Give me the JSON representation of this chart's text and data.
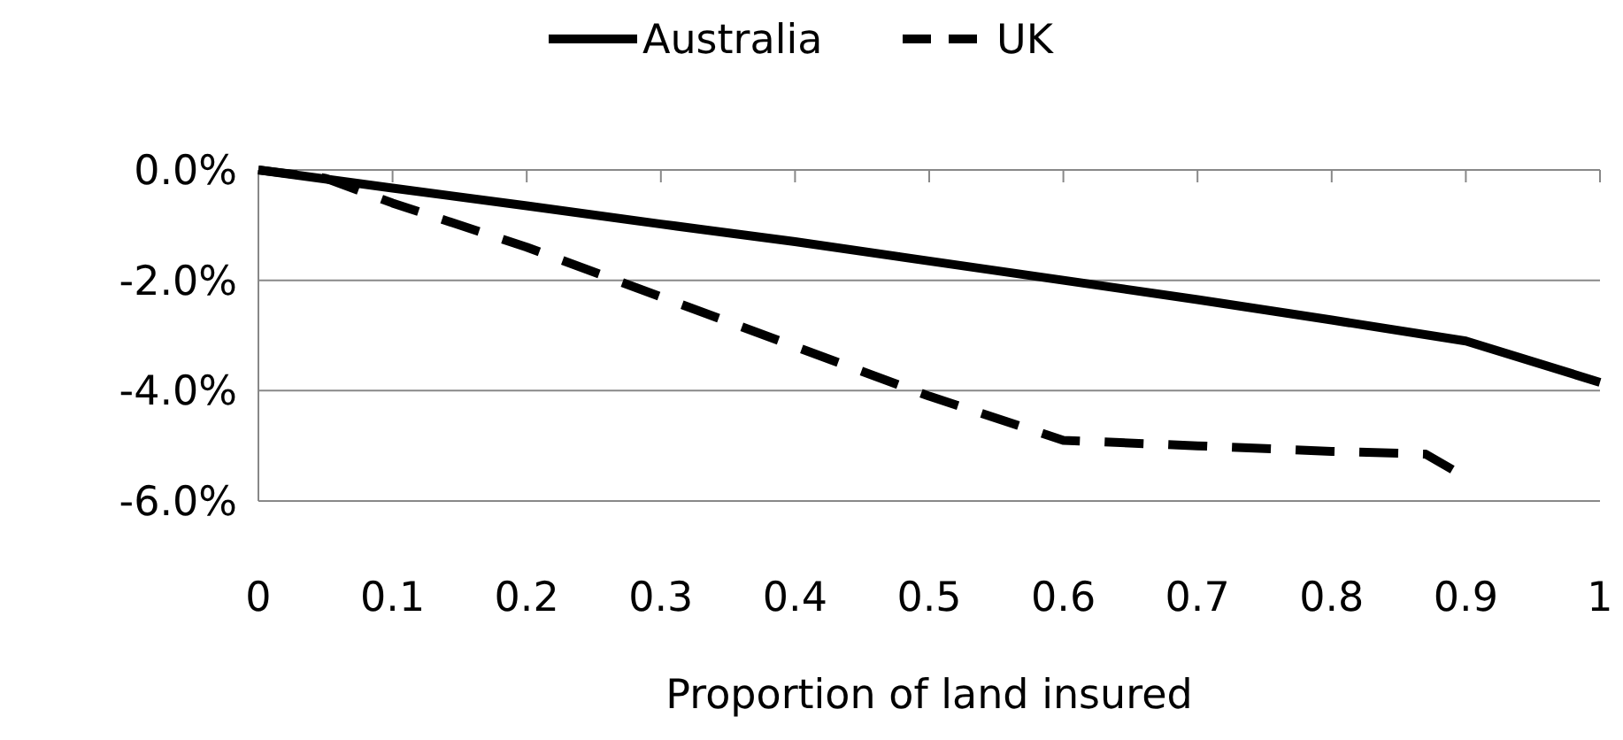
{
  "chart_data": {
    "type": "line",
    "xlabel": "Proportion of land insured",
    "x": [
      0,
      0.1,
      0.2,
      0.3,
      0.4,
      0.5,
      0.6,
      0.7,
      0.8,
      0.9,
      1
    ],
    "series": [
      {
        "name": "Australia",
        "color": "#000000",
        "line_style": "solid",
        "values": [
          0,
          -0.33,
          -0.65,
          -0.98,
          -1.3,
          -1.65,
          -2.0,
          -2.35,
          -2.72,
          -3.1,
          -3.85
        ]
      },
      {
        "name": "UK",
        "color": "#000000",
        "line_style": "dashed",
        "x": [
          0,
          0.05,
          0.1,
          0.2,
          0.3,
          0.4,
          0.5,
          0.6,
          0.7,
          0.8,
          0.87,
          0.89
        ],
        "values": [
          0,
          -0.15,
          -0.6,
          -1.4,
          -2.3,
          -3.2,
          -4.1,
          -4.9,
          -5.0,
          -5.1,
          -5.15,
          -5.43
        ]
      }
    ],
    "xlim": [
      0,
      1
    ],
    "xticks": [
      0,
      0.1,
      0.2,
      0.3,
      0.4,
      0.5,
      0.6,
      0.7,
      0.8,
      0.9,
      1
    ],
    "ylim": [
      -6,
      0
    ],
    "yticks": [
      {
        "value": 0,
        "label": "0.0%"
      },
      {
        "value": -2,
        "label": "-2.0%"
      },
      {
        "value": -4,
        "label": "-4.0%"
      },
      {
        "value": -6,
        "label": "-6.0%"
      }
    ],
    "grid": "y",
    "legend": "top"
  }
}
